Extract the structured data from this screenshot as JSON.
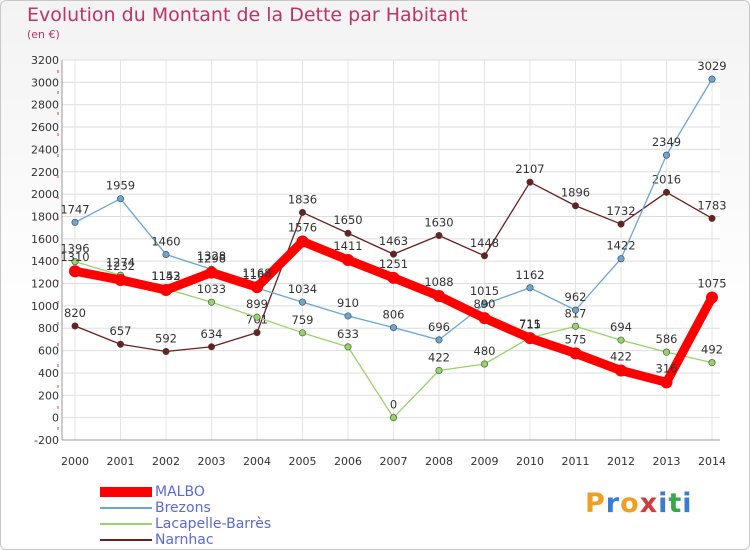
{
  "title": "Evolution du Montant de la Dette par Habitant",
  "subtitle": "(en €)",
  "logo": {
    "letters": [
      "P",
      "r",
      "o",
      "x",
      "i",
      "t",
      "i"
    ],
    "colors": [
      "#f0a020",
      "#3a7bd5",
      "#f0a020",
      "#d23b3b",
      "#3a7bd5",
      "#3aa84a",
      "#3a7bd5"
    ]
  },
  "chart_data": {
    "type": "line",
    "x": [
      "2000",
      "2001",
      "2002",
      "2003",
      "2004",
      "2005",
      "2006",
      "2007",
      "2008",
      "2009",
      "2010",
      "2011",
      "2012",
      "2013",
      "2014"
    ],
    "ylim": [
      -200,
      3200
    ],
    "yticks": [
      -200,
      0,
      200,
      400,
      600,
      800,
      1000,
      1200,
      1400,
      1600,
      1800,
      2000,
      2200,
      2400,
      2600,
      2800,
      3000,
      3200
    ],
    "grid": true,
    "legend_position": "bottom-left",
    "series": [
      {
        "name": "Narnhac",
        "color": "#6b1f1f",
        "style": "thin",
        "values": [
          820,
          657,
          592,
          634,
          761,
          1836,
          1650,
          1463,
          1630,
          1448,
          2107,
          1896,
          1732,
          2016,
          1783
        ],
        "labels": [
          "820",
          "657",
          "592",
          "634",
          "761",
          "1836",
          "1650",
          "1463",
          "1630",
          "1448",
          "2107",
          "1896",
          "1732",
          "2016",
          "1783"
        ]
      },
      {
        "name": "Lacapelle-Barrès",
        "color": "#96d468",
        "style": "thin",
        "values": [
          1396,
          1274,
          1153,
          1033,
          899,
          759,
          633,
          0,
          422,
          480,
          715,
          817,
          694,
          586,
          492
        ],
        "labels": [
          "1396",
          "1274",
          "1153",
          "1033",
          "899",
          "759",
          "633",
          "0",
          "422",
          "480",
          "715",
          "817",
          "694",
          "586",
          "492"
        ]
      },
      {
        "name": "Brezons",
        "color": "#6aa6d4",
        "style": "thin",
        "values": [
          1747,
          1959,
          1460,
          1328,
          1160,
          1034,
          910,
          806,
          696,
          1015,
          1162,
          962,
          1422,
          2349,
          3029
        ],
        "labels": [
          "1747",
          "1959",
          "1460",
          "1328",
          "1160",
          "1034",
          "910",
          "806",
          "696",
          "1015",
          "1162",
          "962",
          "1422",
          "2349",
          "3029"
        ]
      },
      {
        "name": "MALBO",
        "color": "#ff0000",
        "style": "thick",
        "values": [
          1310,
          1232,
          1142,
          1298,
          1168,
          1576,
          1411,
          1251,
          1088,
          890,
          711,
          575,
          422,
          316,
          1075
        ],
        "labels": [
          "1310",
          "1232",
          "1142",
          "1298",
          "1168",
          "1576",
          "1411",
          "1251",
          "1088",
          "890",
          "711",
          "575",
          "422",
          "316",
          "1075"
        ]
      }
    ]
  },
  "legend": [
    {
      "name": "MALBO",
      "color": "#ff0000",
      "width": 10
    },
    {
      "name": "Brezons",
      "color": "#6aa6d4",
      "width": 2
    },
    {
      "name": "Lacapelle-Barrès",
      "color": "#96d468",
      "width": 2
    },
    {
      "name": "Narnhac",
      "color": "#6b1f1f",
      "width": 2
    }
  ]
}
